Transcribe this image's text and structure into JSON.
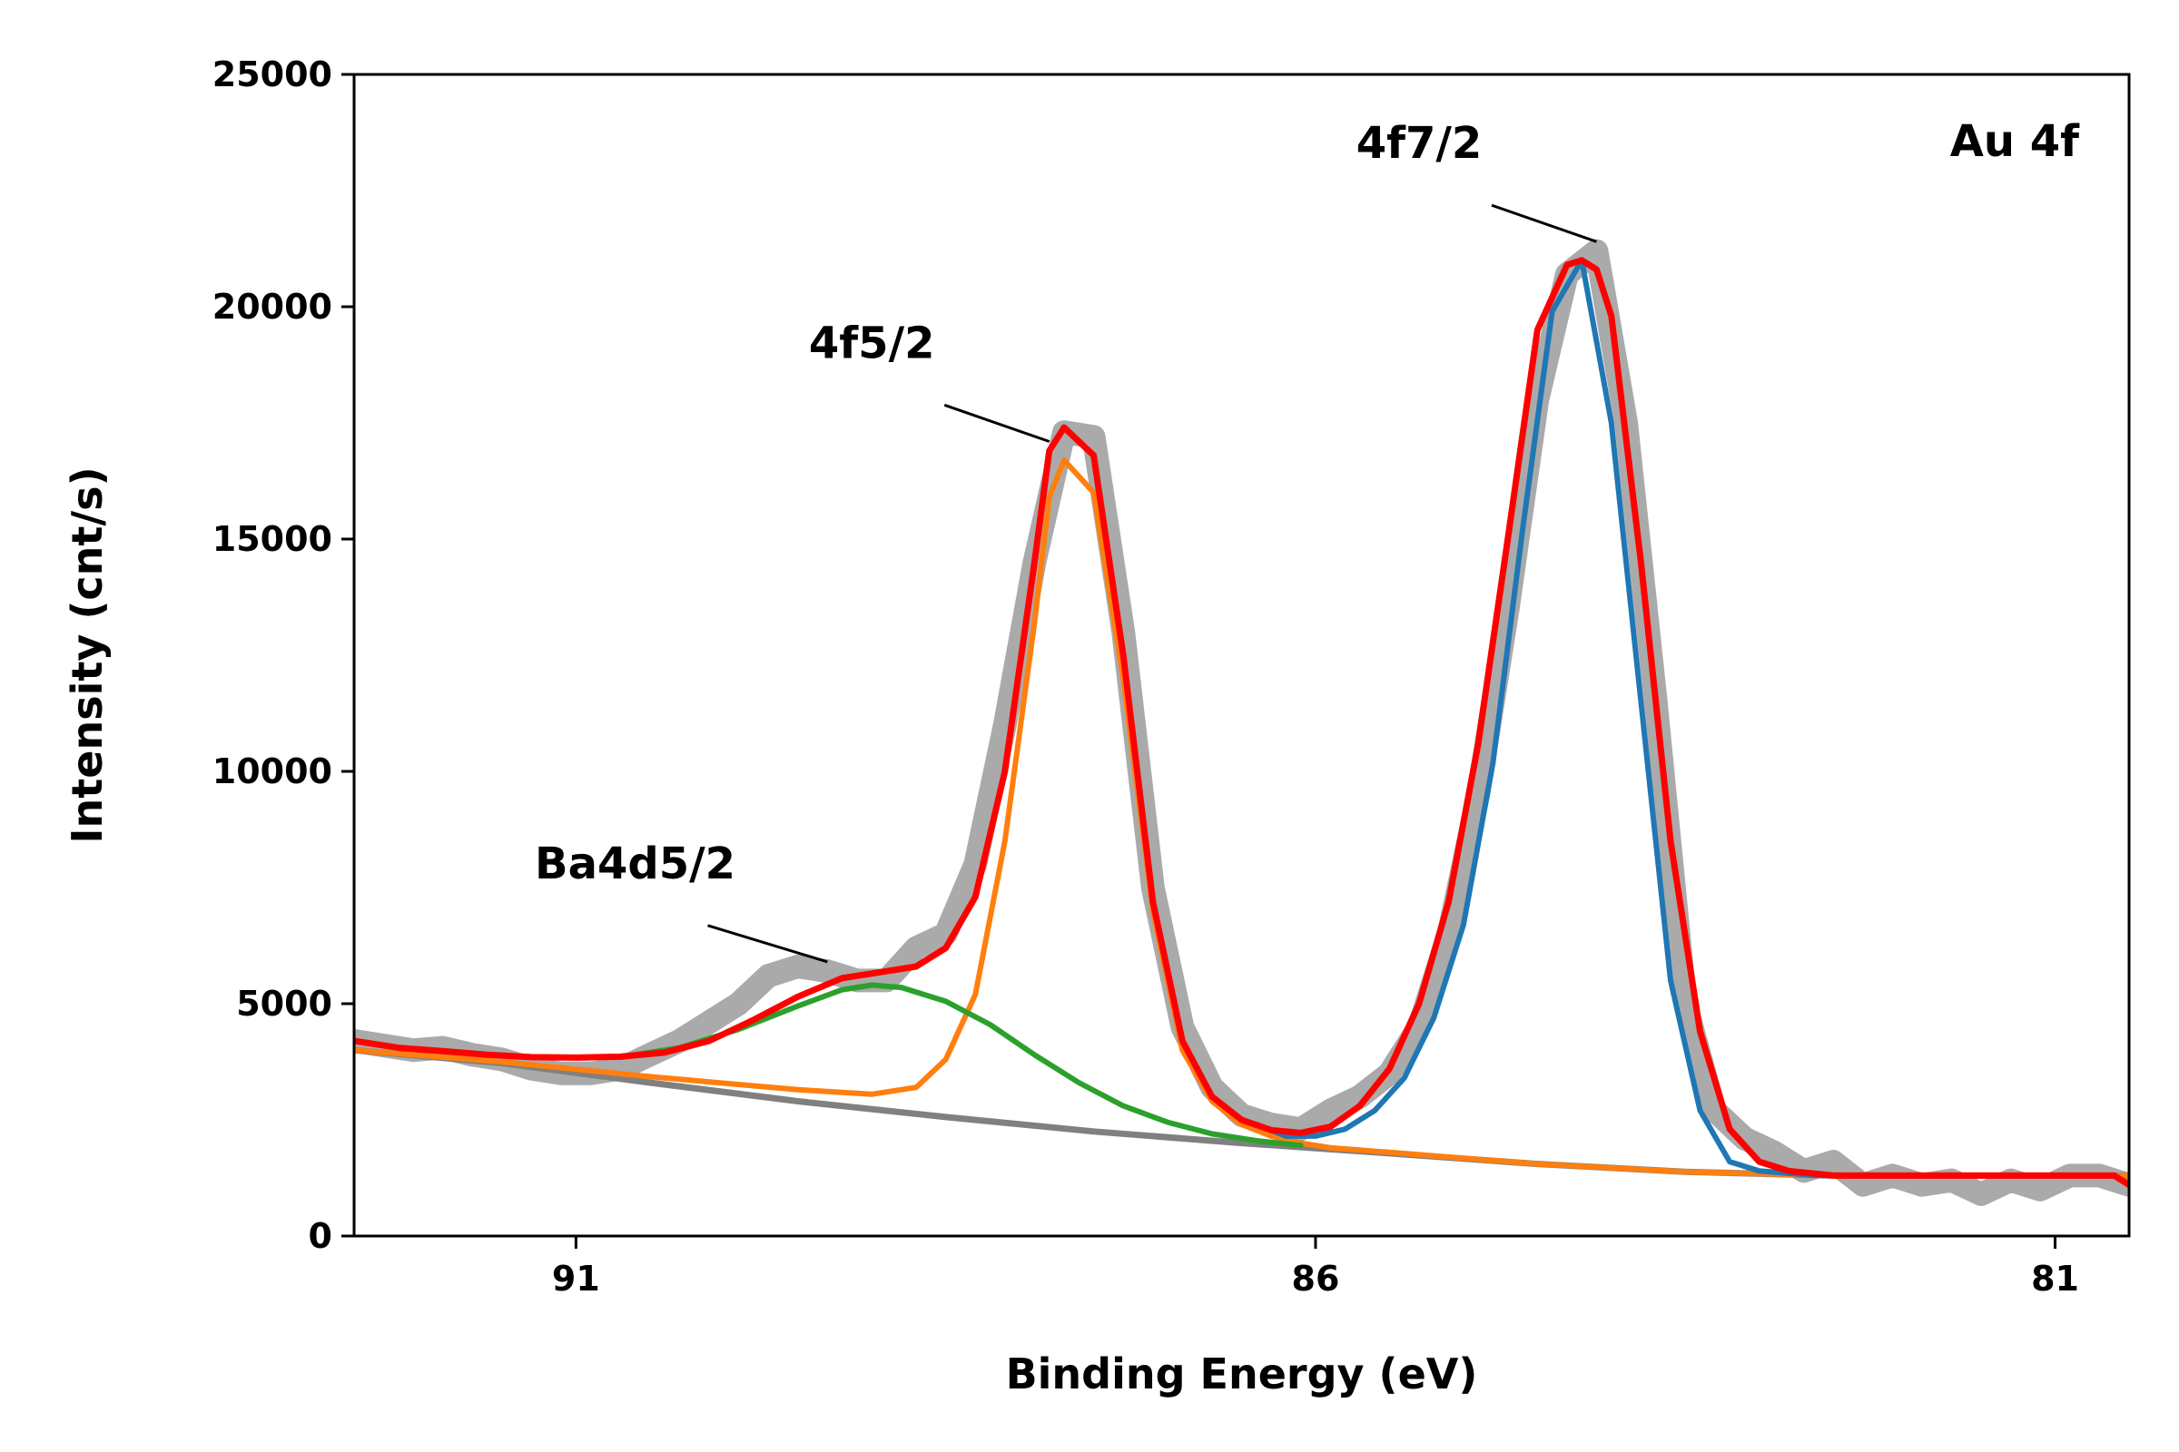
{
  "chart_data": {
    "type": "line",
    "title": "",
    "xlabel": "Binding Energy (eV)",
    "ylabel": "Intensity (cnt/s)",
    "xlim": [
      92.5,
      80.5
    ],
    "ylim": [
      0,
      25000
    ],
    "x_reversed": true,
    "x_ticks": [
      91,
      86,
      81
    ],
    "y_ticks": [
      0,
      5000,
      10000,
      15000,
      20000,
      25000
    ],
    "x_tick_labels": [
      "91",
      "86",
      "81"
    ],
    "y_tick_labels": [
      "0",
      "5000",
      "10000",
      "15000",
      "20000",
      "25000"
    ],
    "grid": false,
    "legend": "none",
    "label_text": "Au 4f",
    "annotations": [
      {
        "text": "4f7/2",
        "target": [
          84.1,
          21400
        ],
        "text_at": [
          85.3,
          23200
        ]
      },
      {
        "text": "4f5/2",
        "target": [
          87.8,
          17100
        ],
        "text_at": [
          89.0,
          18900
        ]
      },
      {
        "text": "Ba4d5/2",
        "target": [
          89.3,
          5900
        ],
        "text_at": [
          90.6,
          7700
        ]
      }
    ],
    "series": [
      {
        "role": "measured data",
        "color": "#aaaaaa",
        "x": [
          92.5,
          92.3,
          92.1,
          91.9,
          91.7,
          91.5,
          91.3,
          91.1,
          90.9,
          90.7,
          90.5,
          90.3,
          90.1,
          89.9,
          89.7,
          89.5,
          89.3,
          89.1,
          88.9,
          88.7,
          88.5,
          88.3,
          88.1,
          87.9,
          87.7,
          87.5,
          87.3,
          87.1,
          86.9,
          86.7,
          86.5,
          86.3,
          86.1,
          85.9,
          85.7,
          85.5,
          85.3,
          85.1,
          84.9,
          84.7,
          84.5,
          84.3,
          84.1,
          83.9,
          83.7,
          83.5,
          83.3,
          83.1,
          82.9,
          82.7,
          82.5,
          82.3,
          82.1,
          81.9,
          81.7,
          81.5,
          81.3,
          81.1,
          80.9,
          80.7,
          80.5
        ],
        "y": [
          4200,
          4100,
          4000,
          4050,
          3900,
          3800,
          3600,
          3500,
          3500,
          3600,
          3900,
          4200,
          4600,
          5000,
          5600,
          5800,
          5700,
          5500,
          5500,
          6200,
          6500,
          8000,
          11000,
          14500,
          17300,
          17200,
          13000,
          7500,
          4500,
          3200,
          2600,
          2400,
          2300,
          2700,
          3000,
          3500,
          4500,
          6500,
          9500,
          13500,
          18000,
          20700,
          21200,
          17500,
          11500,
          5000,
          2700,
          2100,
          1800,
          1400,
          1600,
          1100,
          1300,
          1100,
          1200,
          900,
          1200,
          1000,
          1300,
          1300,
          1100
        ]
      },
      {
        "role": "background",
        "color": "#808080",
        "x": [
          92.5,
          91.5,
          90.5,
          89.5,
          88.5,
          87.5,
          86.5,
          85.5,
          84.5,
          83.5,
          82.5,
          81.5,
          80.5
        ],
        "y": [
          4000,
          3720,
          3300,
          2900,
          2560,
          2250,
          2000,
          1780,
          1550,
          1380,
          1300,
          1300,
          1300
        ]
      },
      {
        "role": "4f5/2 component",
        "color": "#ff7f0e",
        "x": [
          92.5,
          91.5,
          90.5,
          89.5,
          89.0,
          88.7,
          88.5,
          88.3,
          88.1,
          87.9,
          87.8,
          87.7,
          87.5,
          87.3,
          87.1,
          86.9,
          86.7,
          86.5,
          86.3,
          86.1,
          85.9,
          85.5,
          84.5,
          83.5,
          82.5,
          81.5,
          80.5
        ],
        "y": [
          4000,
          3750,
          3430,
          3150,
          3050,
          3200,
          3800,
          5200,
          8500,
          13200,
          15900,
          16700,
          16000,
          12000,
          7000,
          4000,
          2900,
          2400,
          2150,
          2000,
          1900,
          1800,
          1550,
          1380,
          1300,
          1300,
          1300
        ]
      },
      {
        "role": "Ba4d5/2 component",
        "color": "#2ca02c",
        "x": [
          90.7,
          90.3,
          89.9,
          89.5,
          89.2,
          89.0,
          88.8,
          88.5,
          88.2,
          87.9,
          87.6,
          87.3,
          87.0,
          86.7,
          86.4,
          86.1
        ],
        "y": [
          3850,
          4050,
          4450,
          4950,
          5300,
          5400,
          5350,
          5050,
          4550,
          3900,
          3300,
          2800,
          2450,
          2200,
          2050,
          1950
        ]
      },
      {
        "role": "4f7/2 component",
        "color": "#1f77b4",
        "x": [
          86.4,
          86.2,
          86.0,
          85.8,
          85.6,
          85.4,
          85.2,
          85.0,
          84.8,
          84.6,
          84.4,
          84.2,
          84.0,
          83.8,
          83.6,
          83.4,
          83.2,
          83.0,
          82.8,
          82.6,
          82.4
        ],
        "y": [
          2400,
          2150,
          2150,
          2300,
          2700,
          3400,
          4700,
          6700,
          10200,
          15200,
          19900,
          21000,
          17500,
          11500,
          5500,
          2700,
          1600,
          1400,
          1350,
          1300,
          1300
        ]
      },
      {
        "role": "envelope fit",
        "color": "#ff0000",
        "x": [
          92.5,
          92.2,
          91.9,
          91.6,
          91.3,
          91.0,
          90.7,
          90.4,
          90.1,
          89.8,
          89.5,
          89.2,
          88.9,
          88.7,
          88.5,
          88.3,
          88.1,
          87.9,
          87.8,
          87.7,
          87.5,
          87.3,
          87.1,
          86.9,
          86.7,
          86.5,
          86.3,
          86.1,
          85.9,
          85.7,
          85.5,
          85.3,
          85.1,
          84.9,
          84.7,
          84.5,
          84.3,
          84.2,
          84.1,
          84.0,
          83.8,
          83.6,
          83.4,
          83.2,
          83.0,
          82.8,
          82.5,
          82.0,
          81.5,
          81.0,
          80.6,
          80.5
        ],
        "y": [
          4200,
          4050,
          3980,
          3900,
          3850,
          3840,
          3860,
          3950,
          4200,
          4650,
          5150,
          5550,
          5700,
          5800,
          6200,
          7300,
          10000,
          14500,
          16900,
          17400,
          16800,
          12500,
          7200,
          4200,
          3000,
          2500,
          2280,
          2220,
          2350,
          2800,
          3600,
          5000,
          7200,
          10600,
          15000,
          19500,
          20900,
          21000,
          20800,
          19800,
          14500,
          8500,
          4400,
          2300,
          1600,
          1400,
          1300,
          1300,
          1300,
          1300,
          1300,
          1100
        ]
      }
    ]
  }
}
